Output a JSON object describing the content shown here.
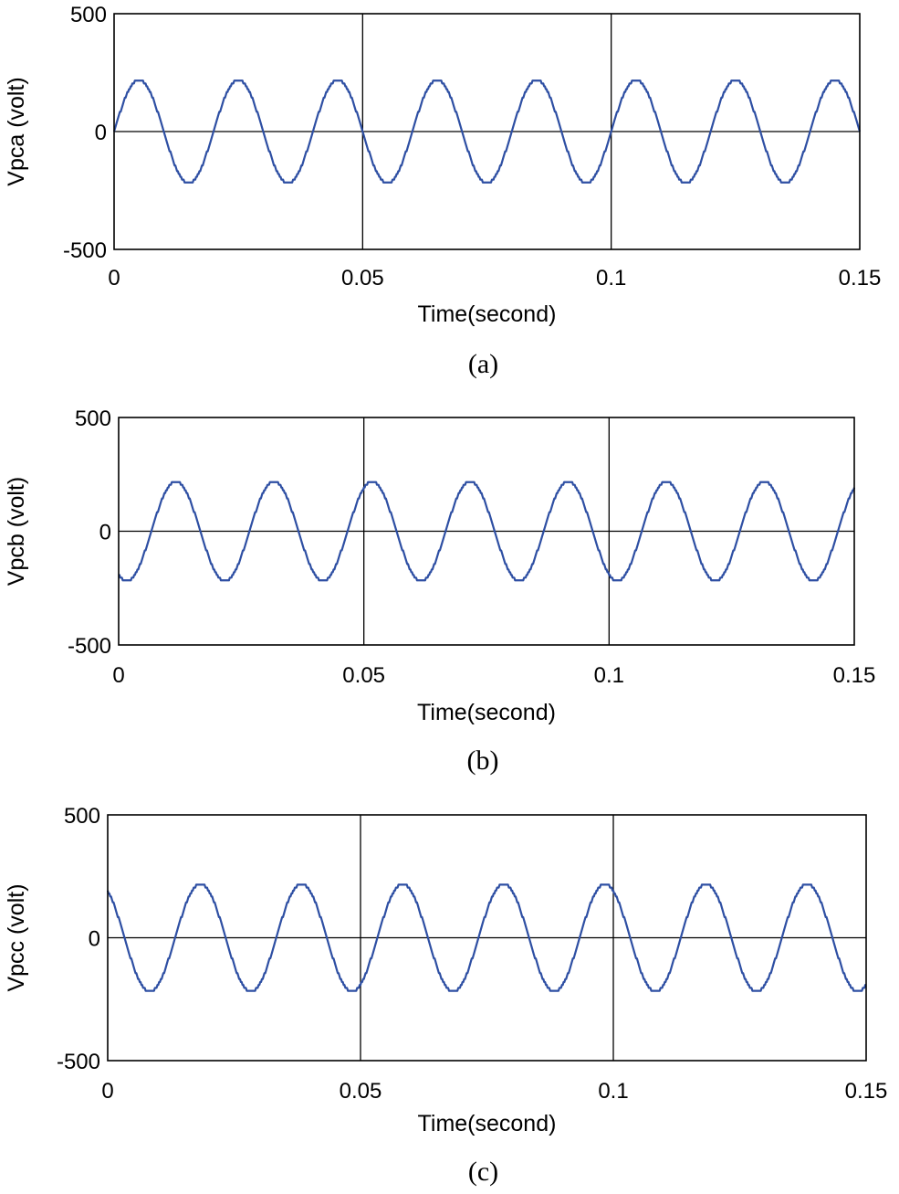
{
  "chart_data": [
    {
      "type": "line",
      "caption": "(a)",
      "xlabel": "Time(second)",
      "ylabel": "Vpca (volt)",
      "xlim": [
        0,
        0.15
      ],
      "ylim": [
        -500,
        500
      ],
      "xticks": [
        0,
        0.05,
        0.1,
        0.15
      ],
      "xtick_labels": [
        "0",
        "0.05",
        "0.1",
        "0.15"
      ],
      "yticks": [
        500,
        0,
        -500
      ],
      "ytick_labels": [
        "500",
        "0",
        "-500"
      ],
      "grid_x": [
        0.05,
        0.1
      ],
      "grid_y": [
        0
      ],
      "color": "#2e4fa3",
      "series": [
        {
          "amplitude": 220,
          "frequency_hz": 50,
          "phase_deg": 0,
          "x_range": [
            0,
            0.15
          ]
        }
      ]
    },
    {
      "type": "line",
      "caption": "(b)",
      "xlabel": "Time(second)",
      "ylabel": "Vpcb (volt)",
      "xlim": [
        0,
        0.15
      ],
      "ylim": [
        -500,
        500
      ],
      "xticks": [
        0,
        0.05,
        0.1,
        0.15
      ],
      "xtick_labels": [
        "0",
        "0.05",
        "0.1",
        "0.15"
      ],
      "yticks": [
        500,
        0,
        -500
      ],
      "ytick_labels": [
        "500",
        "0",
        "-500"
      ],
      "grid_x": [
        0.05,
        0.1
      ],
      "grid_y": [
        0
      ],
      "color": "#2e4fa3",
      "series": [
        {
          "amplitude": 220,
          "frequency_hz": 50,
          "phase_deg": -120,
          "x_range": [
            0,
            0.15
          ]
        }
      ]
    },
    {
      "type": "line",
      "caption": "(c)",
      "xlabel": "Time(second)",
      "ylabel": "Vpcc (volt)",
      "xlim": [
        0,
        0.15
      ],
      "ylim": [
        -500,
        500
      ],
      "xticks": [
        0,
        0.05,
        0.1,
        0.15
      ],
      "xtick_labels": [
        "0",
        "0.05",
        "0.1",
        "0.15"
      ],
      "yticks": [
        500,
        0,
        -500
      ],
      "ytick_labels": [
        "500",
        "0",
        "-500"
      ],
      "grid_x": [
        0.05,
        0.1
      ],
      "grid_y": [
        0
      ],
      "color": "#2e4fa3",
      "series": [
        {
          "amplitude": 220,
          "frequency_hz": 50,
          "phase_deg": 120,
          "x_range": [
            0,
            0.15
          ]
        }
      ]
    }
  ]
}
